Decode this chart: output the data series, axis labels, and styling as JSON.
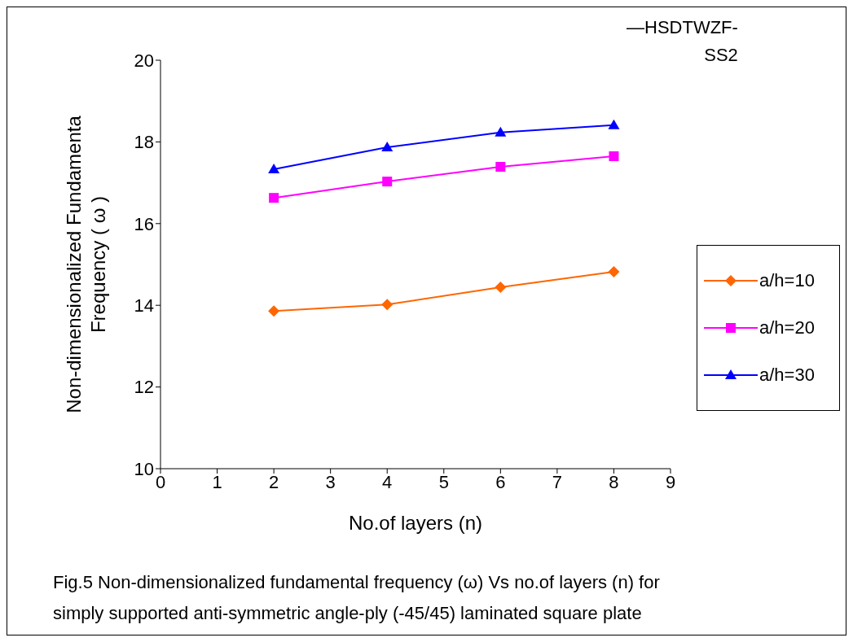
{
  "chart_data": {
    "type": "line",
    "xlabel": "No.of layers (n)",
    "ylabel": "Non-dimensionalized Fundamenta\nFrequency ( ω )",
    "x": [
      2,
      4,
      6,
      8
    ],
    "series": [
      {
        "name": "a/h=10",
        "color": "#ff6600",
        "marker": "diamond",
        "values": [
          13.86,
          14.02,
          14.44,
          14.82
        ]
      },
      {
        "name": "a/h=20",
        "color": "#ff00ff",
        "marker": "square",
        "values": [
          16.63,
          17.03,
          17.39,
          17.65
        ]
      },
      {
        "name": "a/h=30",
        "color": "#0000ff",
        "marker": "triangle",
        "values": [
          17.33,
          17.87,
          18.23,
          18.41
        ]
      }
    ],
    "xlim": [
      0,
      9
    ],
    "xticks": [
      0,
      1,
      2,
      3,
      4,
      5,
      6,
      7,
      8,
      9
    ],
    "ylim": [
      10,
      20
    ],
    "yticks": [
      10,
      12,
      14,
      16,
      18,
      20
    ],
    "grid": false,
    "legend": "right",
    "line_style": "solid",
    "annotations": [
      "—HSDTWZF-\nSS2",
      "Fig.5  Non-dimensionalized fundamental frequency (ω) Vs no.of layers (n) for\nsimply supported anti-symmetric angle-ply (-45/45) laminated square plate"
    ]
  }
}
